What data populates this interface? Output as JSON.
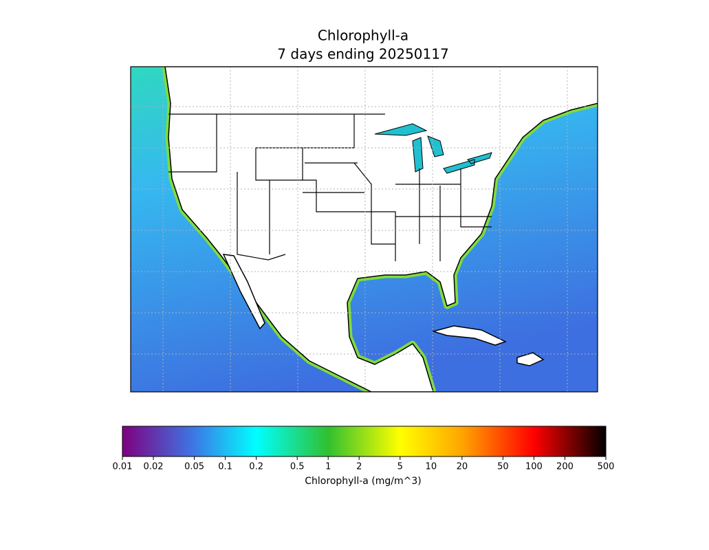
{
  "chart_data": {
    "type": "map",
    "title": "Chlorophyll-a",
    "subtitle": "7 days ending 20250117",
    "colorbar": {
      "label": "Chlorophyll-a (mg/m^3)",
      "log": true,
      "lim": [
        0.01,
        500
      ],
      "ticks": [
        0.01,
        0.02,
        0.05,
        0.1,
        0.2,
        0.5,
        1,
        2,
        5,
        10,
        20,
        50,
        100,
        200,
        500
      ],
      "colormap": [
        {
          "value": 0.01,
          "color": "#800080"
        },
        {
          "value": 0.05,
          "color": "#3c78e6"
        },
        {
          "value": 0.2,
          "color": "#00ffff"
        },
        {
          "value": 1,
          "color": "#30c030"
        },
        {
          "value": 5,
          "color": "#ffff00"
        },
        {
          "value": 20,
          "color": "#ffa500"
        },
        {
          "value": 100,
          "color": "#ff0000"
        },
        {
          "value": 500,
          "color": "#000000"
        }
      ]
    }
  }
}
